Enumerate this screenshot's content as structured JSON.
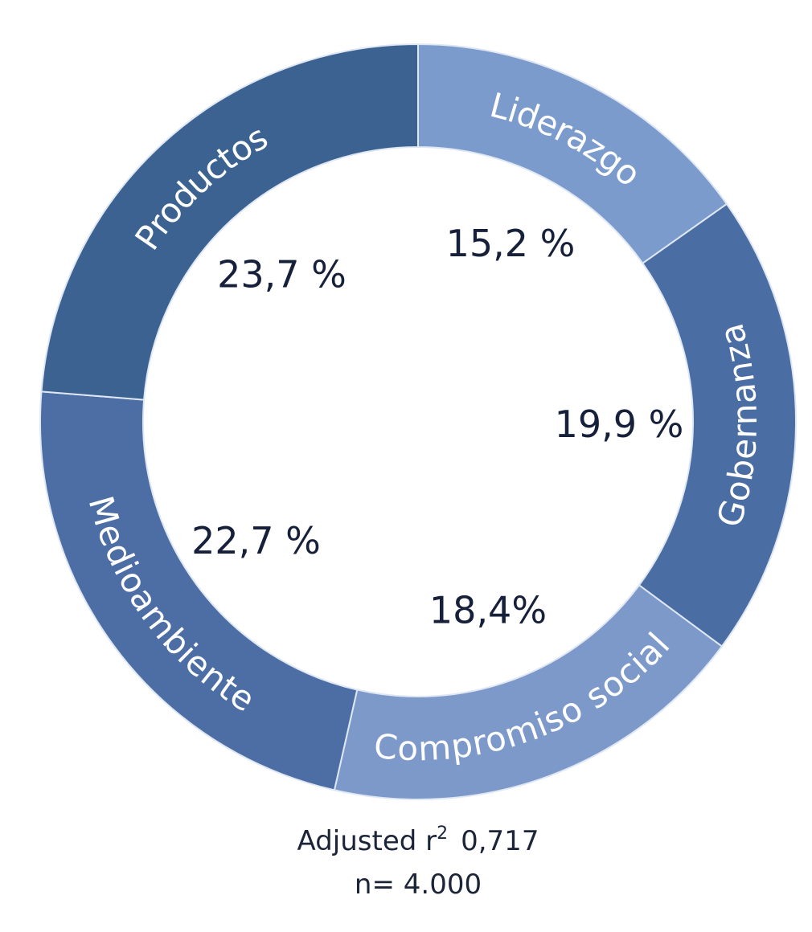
{
  "chart_data": {
    "type": "pie",
    "categories": [
      "Liderazgo",
      "Gobernanza",
      "Compromiso social",
      "Medioambiente",
      "Productos"
    ],
    "values": [
      15.2,
      19.9,
      18.4,
      22.7,
      23.7
    ],
    "value_labels": [
      "15,2 %",
      "19,9 %",
      "18,4%",
      "22,7 %",
      "23,7 %"
    ],
    "colors": [
      "#7b9bcc",
      "#4a6da3",
      "#7c99ca",
      "#4c6ea4",
      "#3b6291"
    ],
    "notes": [
      {
        "text": "Adjusted r",
        "sup": "2",
        "value": "0,717"
      },
      {
        "text": "n= 4.000"
      }
    ]
  }
}
